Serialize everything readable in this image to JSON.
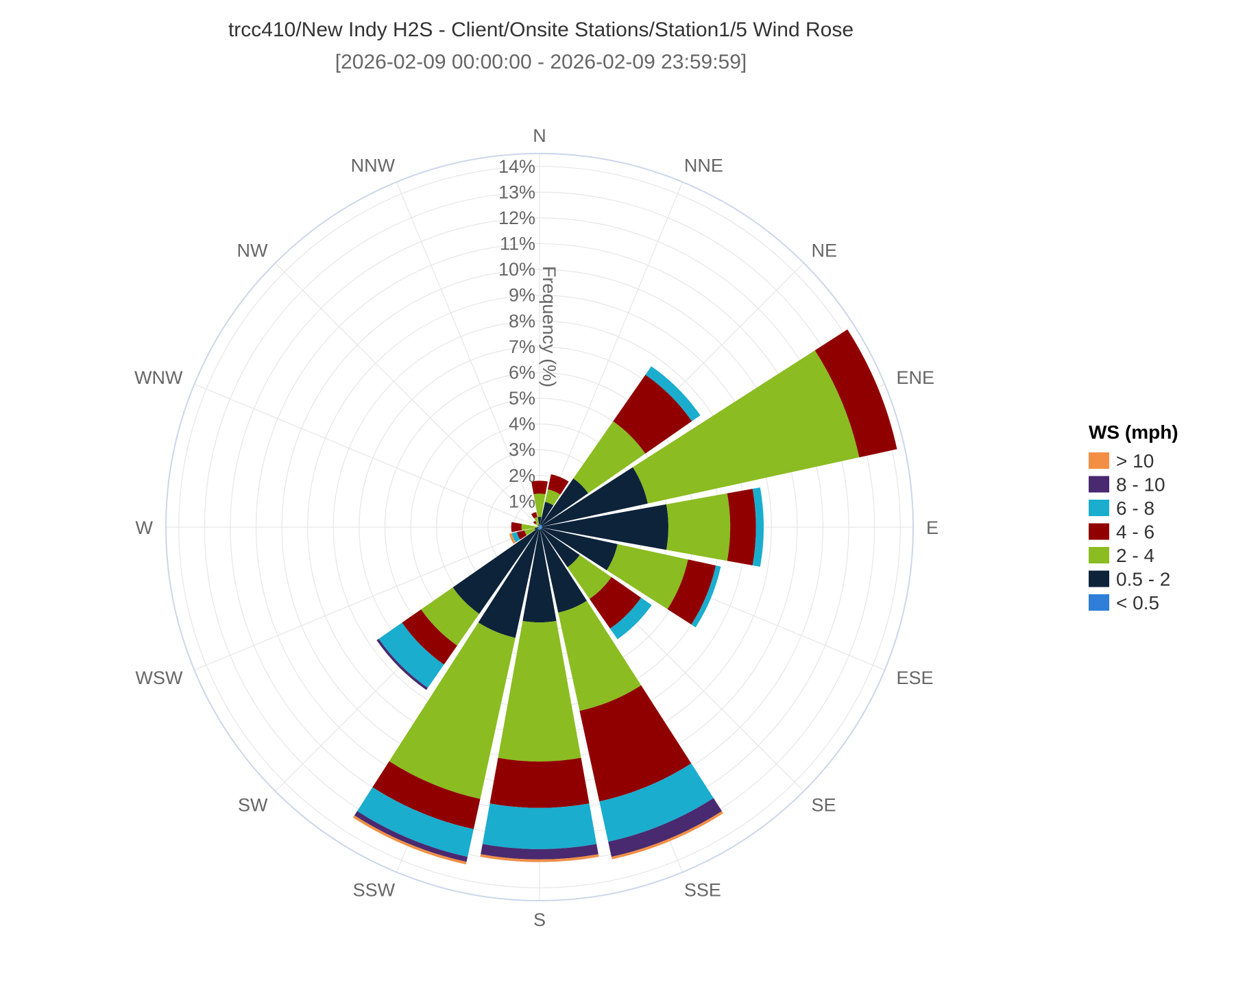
{
  "chart_data": {
    "type": "windrose",
    "title": "trcc410/New Indy H2S - Client/Onsite Stations/Station1/5 Wind Rose",
    "subtitle": "[2026-02-09 00:00:00 - 2026-02-09 23:59:59]",
    "radial_axis_title": "Frequency (%)",
    "radial_ticks": [
      "1%",
      "2%",
      "3%",
      "4%",
      "5%",
      "6%",
      "7%",
      "8%",
      "9%",
      "10%",
      "11%",
      "12%",
      "13%",
      "14%"
    ],
    "rmax": 14.5,
    "directions": [
      "N",
      "NNE",
      "NE",
      "ENE",
      "E",
      "ESE",
      "SE",
      "SSE",
      "S",
      "SSW",
      "SW",
      "WSW",
      "W",
      "WNW",
      "NW",
      "NNW"
    ],
    "legend_title": "WS (mph)",
    "series": [
      {
        "name": "< 0.5",
        "color": "#2f7ed8",
        "values": [
          0.1,
          0.1,
          0.1,
          0.1,
          0.1,
          0.1,
          0.1,
          0.1,
          0.1,
          0.1,
          0.1,
          0,
          0,
          0,
          0,
          0
        ]
      },
      {
        "name": "0.5 - 2",
        "color": "#0d233a",
        "values": [
          0.3,
          0.9,
          2.2,
          4.2,
          4.9,
          3.0,
          1.8,
          3.3,
          3.6,
          4.3,
          4.0,
          0.2,
          0.1,
          0,
          0,
          0.1
        ]
      },
      {
        "name": "2 - 4",
        "color": "#8bbc21",
        "values": [
          0.9,
          0.5,
          2.7,
          8.4,
          2.4,
          2.8,
          1.5,
          3.9,
          5.4,
          6.4,
          1.5,
          0.4,
          0.6,
          0,
          0.2,
          0.3
        ]
      },
      {
        "name": "4 - 6",
        "color": "#910000",
        "values": [
          0.5,
          0.6,
          2.2,
          1.5,
          1.0,
          1.1,
          1.4,
          3.6,
          1.8,
          1.2,
          0.9,
          0.3,
          0.4,
          0,
          0.1,
          0.2
        ]
      },
      {
        "name": "6 - 8",
        "color": "#1aadce",
        "values": [
          0,
          0,
          0.4,
          0,
          0.3,
          0.2,
          0.5,
          1.6,
          1.6,
          1.1,
          1.1,
          0.2,
          0,
          0,
          0,
          0
        ]
      },
      {
        "name": "8 - 10",
        "color": "#492970",
        "values": [
          0,
          0,
          0,
          0,
          0,
          0,
          0,
          0.6,
          0.4,
          0.2,
          0.1,
          0,
          0,
          0,
          0,
          0
        ]
      },
      {
        "name": "> 10",
        "color": "#f28f43",
        "values": [
          0,
          0,
          0,
          0,
          0,
          0,
          0,
          0.1,
          0.1,
          0.1,
          0,
          0.1,
          0,
          0,
          0,
          0
        ]
      }
    ],
    "legend_order": [
      "> 10",
      "8 - 10",
      "6 - 8",
      "4 - 6",
      "2 - 4",
      "0.5 - 2",
      "< 0.5"
    ],
    "grid": true,
    "legend_position": "right"
  }
}
